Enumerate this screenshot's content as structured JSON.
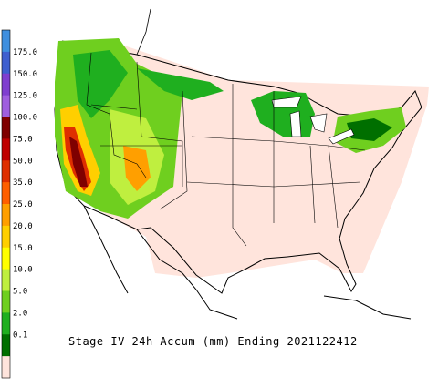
{
  "title": "Stage IV 24h Accum (mm) Ending 2021122412",
  "legend": {
    "labels": [
      "175.0",
      "150.0",
      "125.0",
      "100.0",
      "75.0",
      "50.0",
      "35.0",
      "25.0",
      "20.0",
      "15.0",
      "10.0",
      "5.0",
      "2.0",
      "0.1"
    ],
    "colors": [
      "#3f8fdf",
      "#3f5fcf",
      "#7f3fcf",
      "#9f5fdf",
      "#7f0000",
      "#bf0000",
      "#df2f00",
      "#ff5f00",
      "#ff9f00",
      "#ffcf00",
      "#ffff00",
      "#bfef3f",
      "#6fcf1f",
      "#1faf1f",
      "#006f00",
      "#ffe4dc"
    ]
  }
}
